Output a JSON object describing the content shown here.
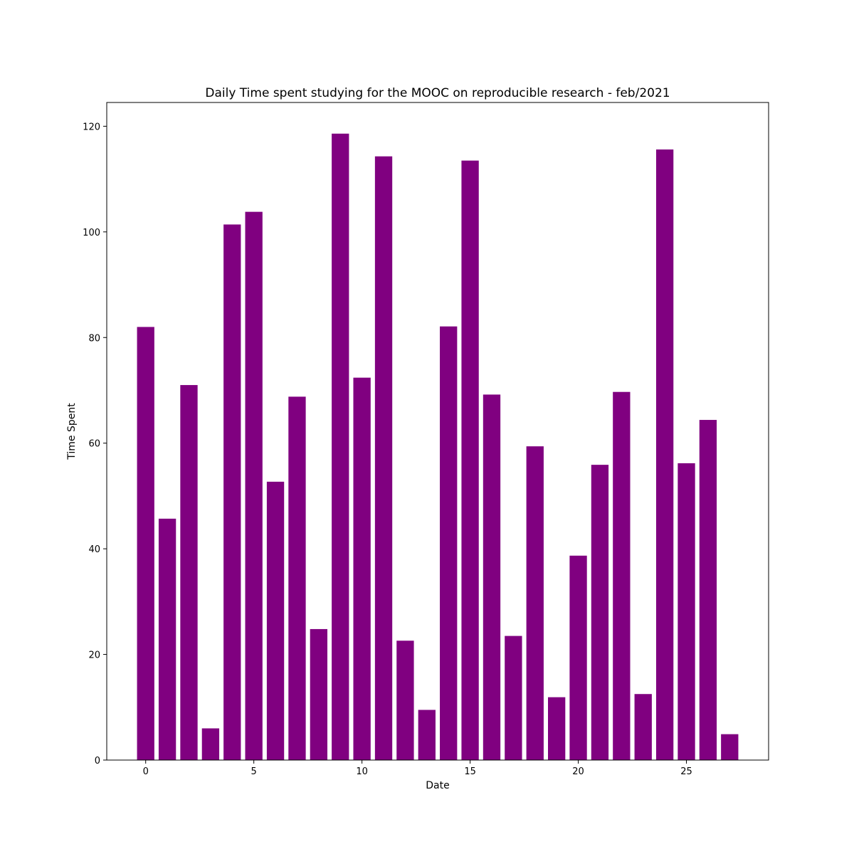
{
  "chart_data": {
    "type": "bar",
    "title": "Daily Time spent studying for the MOOC on reproducible research - feb/2021",
    "xlabel": "Date",
    "ylabel": "Time Spent",
    "x": [
      0,
      1,
      2,
      3,
      4,
      5,
      6,
      7,
      8,
      9,
      10,
      11,
      12,
      13,
      14,
      15,
      16,
      17,
      18,
      19,
      20,
      21,
      22,
      23,
      24,
      25,
      26,
      27
    ],
    "values": [
      82,
      45.7,
      71,
      6,
      101.4,
      103.8,
      52.7,
      68.8,
      24.8,
      118.6,
      72.4,
      114.3,
      22.6,
      9.5,
      82.1,
      113.5,
      69.2,
      23.5,
      59.4,
      11.9,
      38.7,
      55.9,
      69.7,
      12.5,
      115.6,
      56.2,
      64.4,
      4.9
    ],
    "bar_color": "#800080",
    "xlim": [
      -1.8,
      28.8
    ],
    "ylim": [
      0,
      124.5
    ],
    "xticks": [
      0,
      5,
      10,
      15,
      20,
      25
    ],
    "yticks": [
      0,
      20,
      40,
      60,
      80,
      100,
      120
    ],
    "grid": false,
    "legend": "none"
  }
}
